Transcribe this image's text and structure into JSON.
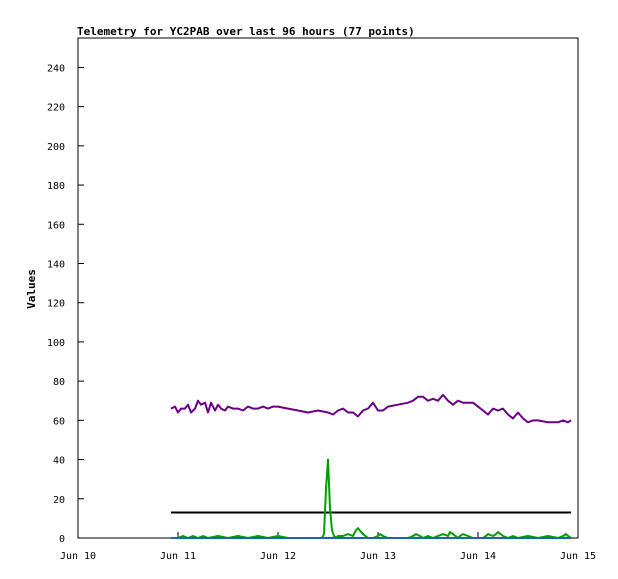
{
  "chart_data": {
    "type": "line",
    "title": "Telemetry for YC2PAB over last 96 hours (77 points)",
    "xlabel": "",
    "ylabel": "Values",
    "x_ticks": [
      "Jun 10",
      "Jun 11",
      "Jun 12",
      "Jun 13",
      "Jun 14",
      "Jun 15"
    ],
    "xlim": [
      0,
      5
    ],
    "ylim": [
      0,
      255
    ],
    "y_ticks": [
      0,
      20,
      40,
      60,
      80,
      100,
      120,
      140,
      160,
      180,
      200,
      220,
      240
    ],
    "grid": false,
    "series": [
      {
        "color": "#6b0085",
        "x": [
          0.93,
          0.97,
          1.0,
          1.03,
          1.07,
          1.1,
          1.13,
          1.17,
          1.2,
          1.23,
          1.27,
          1.3,
          1.33,
          1.37,
          1.4,
          1.43,
          1.47,
          1.5,
          1.55,
          1.6,
          1.65,
          1.7,
          1.75,
          1.8,
          1.85,
          1.9,
          1.95,
          2.0,
          2.1,
          2.2,
          2.3,
          2.4,
          2.5,
          2.55,
          2.6,
          2.65,
          2.7,
          2.75,
          2.8,
          2.85,
          2.9,
          2.95,
          3.0,
          3.05,
          3.1,
          3.2,
          3.3,
          3.35,
          3.4,
          3.45,
          3.5,
          3.55,
          3.6,
          3.65,
          3.7,
          3.75,
          3.8,
          3.85,
          3.9,
          3.95,
          4.0,
          4.05,
          4.1,
          4.15,
          4.2,
          4.25,
          4.3,
          4.35,
          4.4,
          4.45,
          4.5,
          4.55,
          4.6,
          4.7,
          4.8,
          4.85,
          4.9,
          4.93
        ],
        "values": [
          66,
          67,
          64,
          66,
          66,
          68,
          64,
          66,
          70,
          68,
          69,
          64,
          69,
          65,
          68,
          66,
          65,
          67,
          66,
          66,
          65,
          67,
          66,
          66,
          67,
          66,
          67,
          67,
          66,
          65,
          64,
          65,
          64,
          63,
          65,
          66,
          64,
          64,
          62,
          65,
          66,
          69,
          65,
          65,
          67,
          68,
          69,
          70,
          72,
          72,
          70,
          71,
          70,
          73,
          70,
          68,
          70,
          69,
          69,
          69,
          67,
          65,
          63,
          66,
          65,
          66,
          63,
          61,
          64,
          61,
          59,
          60,
          60,
          59,
          59,
          60,
          59,
          60
        ]
      },
      {
        "color": "#000000",
        "x": [
          0.93,
          4.93
        ],
        "values": [
          13,
          13
        ]
      },
      {
        "color": "#00a000",
        "x": [
          0.93,
          1.0,
          1.05,
          1.1,
          1.15,
          1.2,
          1.25,
          1.3,
          1.4,
          1.5,
          1.6,
          1.7,
          1.8,
          1.9,
          2.0,
          2.1,
          2.2,
          2.3,
          2.4,
          2.44,
          2.46,
          2.48,
          2.5,
          2.52,
          2.54,
          2.56,
          2.58,
          2.6,
          2.65,
          2.7,
          2.75,
          2.78,
          2.8,
          2.85,
          2.9,
          2.95,
          3.0,
          3.02,
          3.05,
          3.1,
          3.2,
          3.3,
          3.35,
          3.38,
          3.42,
          3.45,
          3.5,
          3.55,
          3.6,
          3.65,
          3.7,
          3.72,
          3.75,
          3.8,
          3.82,
          3.85,
          3.9,
          3.95,
          4.0,
          4.05,
          4.08,
          4.1,
          4.15,
          4.18,
          4.2,
          4.25,
          4.3,
          4.35,
          4.4,
          4.5,
          4.6,
          4.7,
          4.8,
          4.85,
          4.88,
          4.9,
          4.93
        ],
        "values": [
          0,
          0,
          1,
          0,
          1,
          0,
          1,
          0,
          1,
          0,
          1,
          0,
          1,
          0,
          1,
          0,
          0,
          0,
          0,
          0,
          2,
          25,
          40,
          15,
          4,
          1,
          0,
          1,
          1,
          2,
          1,
          4,
          5,
          2,
          0,
          0,
          1,
          2,
          1,
          0,
          0,
          0,
          1,
          2,
          1,
          0,
          1,
          0,
          1,
          2,
          1,
          3,
          2,
          0,
          1,
          2,
          1,
          0,
          0,
          0,
          1,
          2,
          1,
          2,
          3,
          1,
          0,
          1,
          0,
          1,
          0,
          1,
          0,
          1,
          2,
          1,
          0
        ]
      },
      {
        "color": "#1f5fbf",
        "x": [
          0.93,
          4.93
        ],
        "values": [
          0,
          0
        ]
      }
    ]
  }
}
